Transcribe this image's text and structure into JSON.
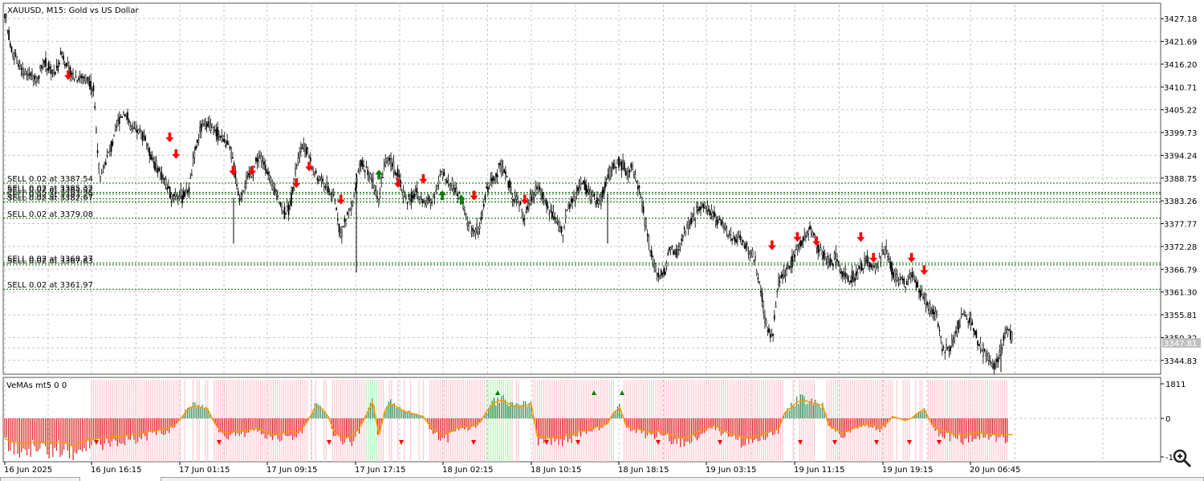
{
  "window": {
    "symbol_title": "XAUUSD, M15:  Gold vs US Dollar",
    "indicator_title": "VeMAs mt5 0 0"
  },
  "colors": {
    "bull_arrow": "#008000",
    "bear_arrow": "#ff0000",
    "order_line": "#006400",
    "hist_positive": "#2e8b57",
    "hist_negative": "#e02020",
    "indicator_line": "#ff9900",
    "bg_bear_zone": "#ffc8d2",
    "bg_bull_zone": "#b4f0b4"
  },
  "chart_data": {
    "type": "candlestick",
    "instrument": "XAUUSD",
    "timeframe": "M15",
    "ylim": [
      3341.5,
      3430.5
    ],
    "y_ticks": [
      "3427.18",
      "3421.69",
      "3416.20",
      "3410.71",
      "3405.22",
      "3399.73",
      "3394.24",
      "3388.75",
      "3383.26",
      "3377.77",
      "3372.28",
      "3366.79",
      "3361.30",
      "3355.81",
      "3350.32",
      "3344.83"
    ],
    "current_price": "3347.81",
    "x_ticks": [
      "16 Jun 2025",
      "16 Jun 16:15",
      "17 Jun 01:15",
      "17 Jun 09:15",
      "17 Jun 17:15",
      "18 Jun 02:15",
      "18 Jun 10:15",
      "18 Jun 18:15",
      "19 Jun 03:15",
      "19 Jun 11:15",
      "19 Jun 19:15",
      "20 Jun 06:45"
    ],
    "price_path": [
      3429,
      3420,
      3417,
      3413,
      3414,
      3412,
      3417,
      3415,
      3414,
      3419,
      3415,
      3413,
      3413,
      3413,
      3410,
      3388,
      3393,
      3397,
      3403,
      3405,
      3400,
      3400,
      3399,
      3394,
      3391,
      3389,
      3385,
      3385,
      3384,
      3386,
      3395,
      3401,
      3402,
      3400,
      3399,
      3397,
      3393,
      3383,
      3388,
      3390,
      3394,
      3392,
      3387,
      3385,
      3380,
      3382,
      3392,
      3397,
      3394,
      3389,
      3388,
      3386,
      3384,
      3375,
      3380,
      3383,
      3392,
      3391,
      3388,
      3384,
      3393,
      3392,
      3390,
      3384,
      3384,
      3385,
      3383,
      3383,
      3386,
      3390,
      3388,
      3386,
      3384,
      3378,
      3376,
      3377,
      3386,
      3388,
      3392,
      3390,
      3385,
      3383,
      3379,
      3384,
      3387,
      3384,
      3381,
      3378,
      3376,
      3382,
      3385,
      3388,
      3385,
      3384,
      3383,
      3389,
      3391,
      3393,
      3390,
      3391,
      3387,
      3378,
      3370,
      3366,
      3366,
      3372,
      3370,
      3375,
      3378,
      3380,
      3382,
      3381,
      3379,
      3378,
      3376,
      3374,
      3374,
      3372,
      3370,
      3365,
      3353,
      3350,
      3364,
      3366,
      3368,
      3372,
      3374,
      3377,
      3373,
      3371,
      3368,
      3370,
      3366,
      3364,
      3365,
      3367,
      3369,
      3367,
      3369,
      3372,
      3366,
      3364,
      3363,
      3366,
      3362,
      3360,
      3357,
      3355,
      3347,
      3348,
      3351,
      3356,
      3355,
      3352,
      3348,
      3346,
      3343,
      3346,
      3353,
      3350
    ],
    "orders": [
      {
        "label": "SELL 0.02 at 3387.54",
        "price": 3387.54
      },
      {
        "label": "SELL 0.02 at 3385.32",
        "price": 3385.32
      },
      {
        "label": "SELL 0.02 at 3384.92",
        "price": 3384.92
      },
      {
        "label": "SELL 0.02 at 3383.79",
        "price": 3383.79
      },
      {
        "label": "SELL 0.02 at 3382.97",
        "price": 3382.97
      },
      {
        "label": "SELL 0.02 at 3379.08",
        "price": 3379.08
      },
      {
        "label": "SELL 0.02 at 3368.27",
        "price": 3368.27
      },
      {
        "label": "SELL 0.02 at 3367.83",
        "price": 3367.83
      },
      {
        "label": "SELL 0.02 at 3361.97",
        "price": 3361.97
      }
    ],
    "sell_arrows": [
      {
        "i": 10,
        "p": 3412
      },
      {
        "i": 26,
        "p": 3397
      },
      {
        "i": 27,
        "p": 3393
      },
      {
        "i": 36,
        "p": 3389
      },
      {
        "i": 39,
        "p": 3389
      },
      {
        "i": 46,
        "p": 3386
      },
      {
        "i": 48,
        "p": 3390
      },
      {
        "i": 53,
        "p": 3382
      },
      {
        "i": 62,
        "p": 3386
      },
      {
        "i": 66,
        "p": 3387
      },
      {
        "i": 74,
        "p": 3383
      },
      {
        "i": 82,
        "p": 3382
      },
      {
        "i": 121,
        "p": 3371
      },
      {
        "i": 125,
        "p": 3373
      },
      {
        "i": 128,
        "p": 3372
      },
      {
        "i": 135,
        "p": 3373
      },
      {
        "i": 137,
        "p": 3368
      },
      {
        "i": 143,
        "p": 3368
      },
      {
        "i": 145,
        "p": 3365
      }
    ],
    "buy_arrows": [
      {
        "i": 59,
        "p": 3390
      },
      {
        "i": 69,
        "p": 3385
      },
      {
        "i": 72,
        "p": 3384
      }
    ],
    "indicator": {
      "y_ticks": [
        "1811",
        "0",
        "-1"
      ],
      "line_path": [
        -1100,
        -1300,
        -1350,
        -1400,
        -1350,
        -1300,
        -1350,
        -1380,
        -1350,
        -1300,
        -1400,
        -1600,
        -1300,
        -1200,
        -1150,
        -1100,
        -1050,
        -1000,
        -1000,
        -950,
        -900,
        -850,
        -800,
        -700,
        -650,
        -600,
        -500,
        -300,
        100,
        550,
        700,
        600,
        500,
        -200,
        -700,
        -800,
        -750,
        -700,
        -650,
        -600,
        -550,
        -700,
        -900,
        -900,
        -800,
        -700,
        -800,
        -500,
        0,
        650,
        550,
        100,
        -800,
        -1000,
        -1050,
        -900,
        -500,
        200,
        900,
        -900,
        500,
        800,
        600,
        400,
        300,
        200,
        100,
        -400,
        -700,
        -900,
        -800,
        -600,
        -400,
        -500,
        -400,
        -200,
        400,
        800,
        1000,
        900,
        700,
        600,
        700,
        800,
        -1000,
        -1000,
        -1100,
        -1000,
        -1000,
        -900,
        -800,
        -700,
        -600,
        -500,
        -400,
        -300,
        300,
        600,
        -400,
        -500,
        -600,
        -700,
        -800,
        -700,
        -800,
        -900,
        -1000,
        -1100,
        -1000,
        -800,
        -600,
        -500,
        -400,
        -600,
        -800,
        -900,
        -1000,
        -1100,
        -1000,
        -900,
        -800,
        -700,
        -600,
        300,
        600,
        900,
        1000,
        900,
        800,
        700,
        -400,
        -600,
        -800,
        -700,
        -500,
        -400,
        -300,
        -400,
        -500,
        -300,
        100,
        0,
        -100,
        0,
        300,
        500,
        -200,
        -600,
        -700,
        -800,
        -900,
        -900,
        -850,
        -800,
        -800,
        -850,
        -900,
        -900,
        -900,
        -900
      ]
    }
  }
}
